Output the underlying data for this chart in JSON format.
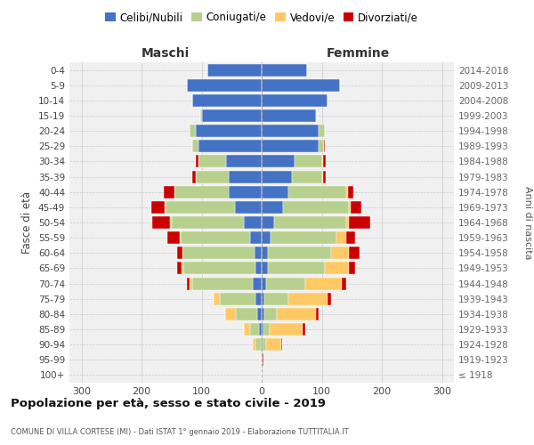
{
  "age_groups": [
    "100+",
    "95-99",
    "90-94",
    "85-89",
    "80-84",
    "75-79",
    "70-74",
    "65-69",
    "60-64",
    "55-59",
    "50-54",
    "45-49",
    "40-44",
    "35-39",
    "30-34",
    "25-29",
    "20-24",
    "15-19",
    "10-14",
    "5-9",
    "0-4"
  ],
  "birth_years": [
    "≤ 1918",
    "1919-1923",
    "1924-1928",
    "1929-1933",
    "1934-1938",
    "1939-1943",
    "1944-1948",
    "1949-1953",
    "1954-1958",
    "1959-1963",
    "1964-1968",
    "1969-1973",
    "1974-1978",
    "1979-1983",
    "1984-1988",
    "1989-1993",
    "1994-1998",
    "1999-2003",
    "2004-2008",
    "2009-2013",
    "2014-2018"
  ],
  "maschi": {
    "celibi": [
      0,
      0,
      2,
      4,
      8,
      10,
      15,
      10,
      12,
      20,
      30,
      45,
      55,
      55,
      60,
      105,
      110,
      100,
      115,
      125,
      90
    ],
    "coniugati": [
      0,
      1,
      8,
      15,
      35,
      60,
      100,
      120,
      120,
      115,
      120,
      115,
      90,
      55,
      45,
      10,
      10,
      2,
      0,
      0,
      0
    ],
    "vedovi": [
      0,
      0,
      5,
      10,
      18,
      10,
      5,
      3,
      0,
      2,
      2,
      2,
      0,
      0,
      0,
      0,
      0,
      0,
      0,
      0,
      0
    ],
    "divorziati": [
      0,
      0,
      0,
      0,
      0,
      0,
      5,
      8,
      8,
      20,
      30,
      22,
      18,
      5,
      5,
      0,
      0,
      0,
      0,
      0,
      0
    ]
  },
  "femmine": {
    "nubili": [
      0,
      0,
      2,
      3,
      5,
      5,
      8,
      10,
      10,
      15,
      20,
      35,
      45,
      50,
      55,
      95,
      95,
      90,
      110,
      130,
      75
    ],
    "coniugate": [
      0,
      0,
      5,
      10,
      20,
      40,
      65,
      95,
      105,
      110,
      120,
      110,
      95,
      50,
      45,
      8,
      10,
      2,
      0,
      0,
      0
    ],
    "vedove": [
      0,
      1,
      25,
      55,
      65,
      65,
      60,
      40,
      30,
      15,
      5,
      3,
      3,
      2,
      2,
      0,
      0,
      0,
      0,
      0,
      0
    ],
    "divorziate": [
      0,
      2,
      2,
      5,
      5,
      5,
      8,
      10,
      18,
      15,
      35,
      18,
      10,
      5,
      5,
      2,
      0,
      0,
      0,
      0,
      0
    ]
  },
  "colors": {
    "celibi": "#4472c4",
    "coniugati": "#b8d08d",
    "vedovi": "#ffc966",
    "divorziati": "#cc0000"
  },
  "xlim": 320,
  "title": "Popolazione per età, sesso e stato civile - 2019",
  "subtitle": "COMUNE DI VILLA CORTESE (MI) - Dati ISTAT 1° gennaio 2019 - Elaborazione TUTTITALIA.IT",
  "ylabel_left": "Fasce di età",
  "ylabel_right": "Anni di nascita",
  "xlabel_left": "Maschi",
  "xlabel_right": "Femmine",
  "bg_color": "#f0f0f0"
}
